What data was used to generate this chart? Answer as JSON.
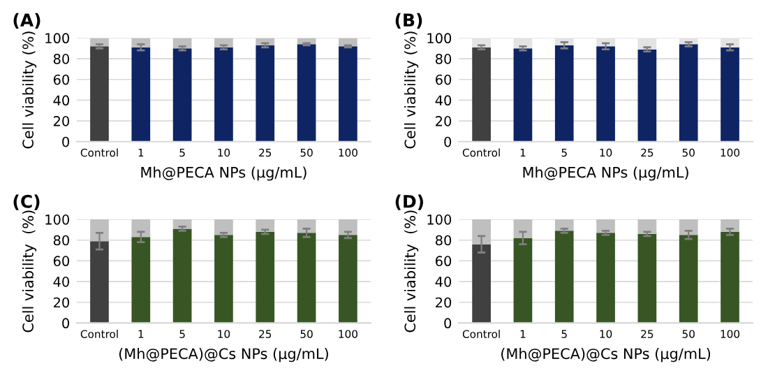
{
  "chart_data": [
    {
      "type": "bar",
      "title": "(A)",
      "xlabel": "Mh@PECA NPs (µg/mL)",
      "ylabel": "Cell viability (%)",
      "categories": [
        "Control",
        "1",
        "5",
        "10",
        "25",
        "50",
        "100"
      ],
      "stacked": true,
      "grid": "y",
      "ylim": [
        0,
        100
      ],
      "yticks": [
        0,
        20,
        40,
        60,
        80,
        100
      ],
      "series": [
        {
          "colors": [
            "#404040",
            "#0f2463",
            "#0f2463",
            "#0f2463",
            "#0f2463",
            "#0f2463",
            "#0f2463"
          ],
          "values": [
            92,
            91,
            90,
            91,
            93,
            94,
            92
          ],
          "errors": [
            2,
            3,
            2,
            2,
            2,
            1,
            1
          ]
        },
        {
          "color": "#bfbfbf",
          "values": [
            8,
            9,
            10,
            9,
            7,
            6,
            8
          ]
        }
      ]
    },
    {
      "type": "bar",
      "title": "(B)",
      "xlabel": "Mh@PECA NPs (µg/mL)",
      "ylabel": "Cell viability (%)",
      "categories": [
        "Control",
        "1",
        "5",
        "10",
        "25",
        "50",
        "100"
      ],
      "stacked": true,
      "grid": "y",
      "ylim": [
        0,
        100
      ],
      "yticks": [
        0,
        20,
        40,
        60,
        80,
        100
      ],
      "series": [
        {
          "colors": [
            "#404040",
            "#0f2463",
            "#0f2463",
            "#0f2463",
            "#0f2463",
            "#0f2463",
            "#0f2463"
          ],
          "values": [
            91,
            90,
            93,
            92,
            89,
            94,
            91
          ],
          "errors": [
            2,
            2,
            3,
            3,
            2,
            2,
            3
          ]
        },
        {
          "color": "#e3e3e3",
          "values": [
            9,
            10,
            7,
            8,
            11,
            6,
            9
          ]
        }
      ]
    },
    {
      "type": "bar",
      "title": "(C)",
      "xlabel": "(Mh@PECA)@Cs NPs (µg/mL)",
      "ylabel": "Cell viability  (%)",
      "categories": [
        "Control",
        "1",
        "5",
        "10",
        "25",
        "50",
        "100"
      ],
      "stacked": true,
      "grid": "y",
      "ylim": [
        0,
        100
      ],
      "yticks": [
        0,
        20,
        40,
        60,
        80,
        100
      ],
      "series": [
        {
          "colors": [
            "#404040",
            "#375623",
            "#375623",
            "#375623",
            "#375623",
            "#375623",
            "#375623"
          ],
          "values": [
            79,
            83,
            91,
            85,
            88,
            87,
            85
          ],
          "errors": [
            8,
            5,
            2,
            2,
            2,
            4,
            3
          ]
        },
        {
          "color": "#bfbfbf",
          "values": [
            21,
            17,
            9,
            15,
            12,
            13,
            15
          ]
        }
      ]
    },
    {
      "type": "bar",
      "title": "(D)",
      "xlabel": "(Mh@PECA)@Cs NPs (µg/mL)",
      "ylabel": "Cell viability  (%)",
      "categories": [
        "Control",
        "1",
        "5",
        "10",
        "25",
        "50",
        "100"
      ],
      "stacked": true,
      "grid": "y",
      "ylim": [
        0,
        100
      ],
      "yticks": [
        0,
        20,
        40,
        60,
        80,
        100
      ],
      "series": [
        {
          "colors": [
            "#404040",
            "#375623",
            "#375623",
            "#375623",
            "#375623",
            "#375623",
            "#375623"
          ],
          "values": [
            76,
            82,
            89,
            87,
            86,
            85,
            88
          ],
          "errors": [
            8,
            6,
            2,
            2,
            2,
            4,
            3
          ]
        },
        {
          "color": "#bfbfbf",
          "values": [
            24,
            18,
            11,
            13,
            14,
            15,
            12
          ]
        }
      ]
    }
  ]
}
